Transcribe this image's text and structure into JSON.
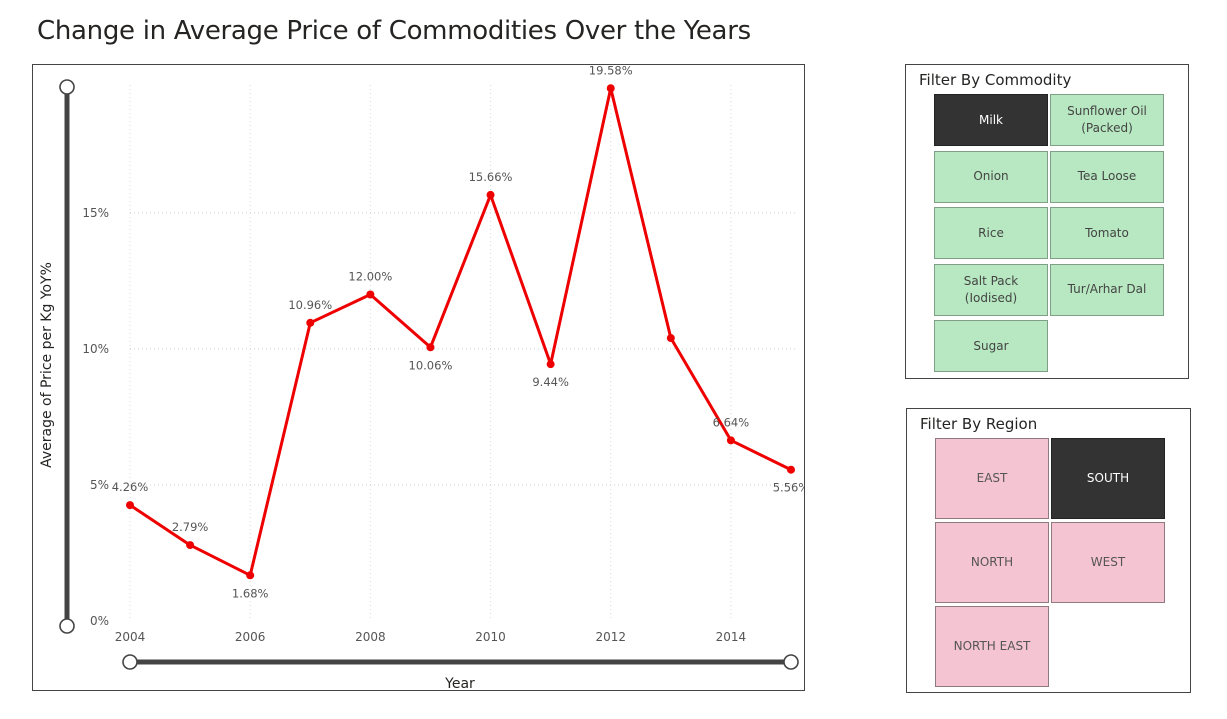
{
  "page": {
    "title": "Change in Average Price of Commodities Over the Years"
  },
  "chart_data": {
    "type": "line",
    "title": "",
    "xlabel": "Year",
    "ylabel": "Average of Price per Kg YoY%",
    "x": [
      2004,
      2005,
      2006,
      2007,
      2008,
      2009,
      2010,
      2011,
      2012,
      2013,
      2014,
      2015
    ],
    "values": [
      4.26,
      2.79,
      1.68,
      10.96,
      12.0,
      10.06,
      15.66,
      9.44,
      19.58,
      10.4,
      6.64,
      5.56
    ],
    "labels": [
      "4.26%",
      "2.79%",
      "1.68%",
      "10.96%",
      "12.00%",
      "10.06%",
      "15.66%",
      "9.44%",
      "19.58%",
      "",
      "6.64%",
      "5.56%"
    ],
    "xticks": [
      "2004",
      "2006",
      "2008",
      "2010",
      "2012",
      "2014"
    ],
    "yticks": [
      "0%",
      "5%",
      "10%",
      "15%"
    ],
    "xlim": [
      2004,
      2015
    ],
    "ylim": [
      0,
      19.7
    ],
    "grid": true,
    "line_color": "#ee0000"
  },
  "commodity_filter": {
    "title": "Filter By Commodity",
    "items": [
      {
        "label": "Milk",
        "selected": true
      },
      {
        "label": "Sunflower Oil (Packed)",
        "selected": false
      },
      {
        "label": "Onion",
        "selected": false
      },
      {
        "label": "Tea Loose",
        "selected": false
      },
      {
        "label": "Rice",
        "selected": false
      },
      {
        "label": "Tomato",
        "selected": false
      },
      {
        "label": "Salt Pack (Iodised)",
        "selected": false
      },
      {
        "label": "Tur/Arhar Dal",
        "selected": false
      },
      {
        "label": "Sugar",
        "selected": false
      }
    ],
    "color": "#b7e8c1"
  },
  "region_filter": {
    "title": "Filter By Region",
    "items": [
      {
        "label": "EAST",
        "selected": false
      },
      {
        "label": "SOUTH",
        "selected": true
      },
      {
        "label": "NORTH",
        "selected": false
      },
      {
        "label": "WEST",
        "selected": false
      },
      {
        "label": "NORTH EAST",
        "selected": false
      }
    ],
    "color": "#f5c4d2"
  },
  "selected_color": "#333333"
}
